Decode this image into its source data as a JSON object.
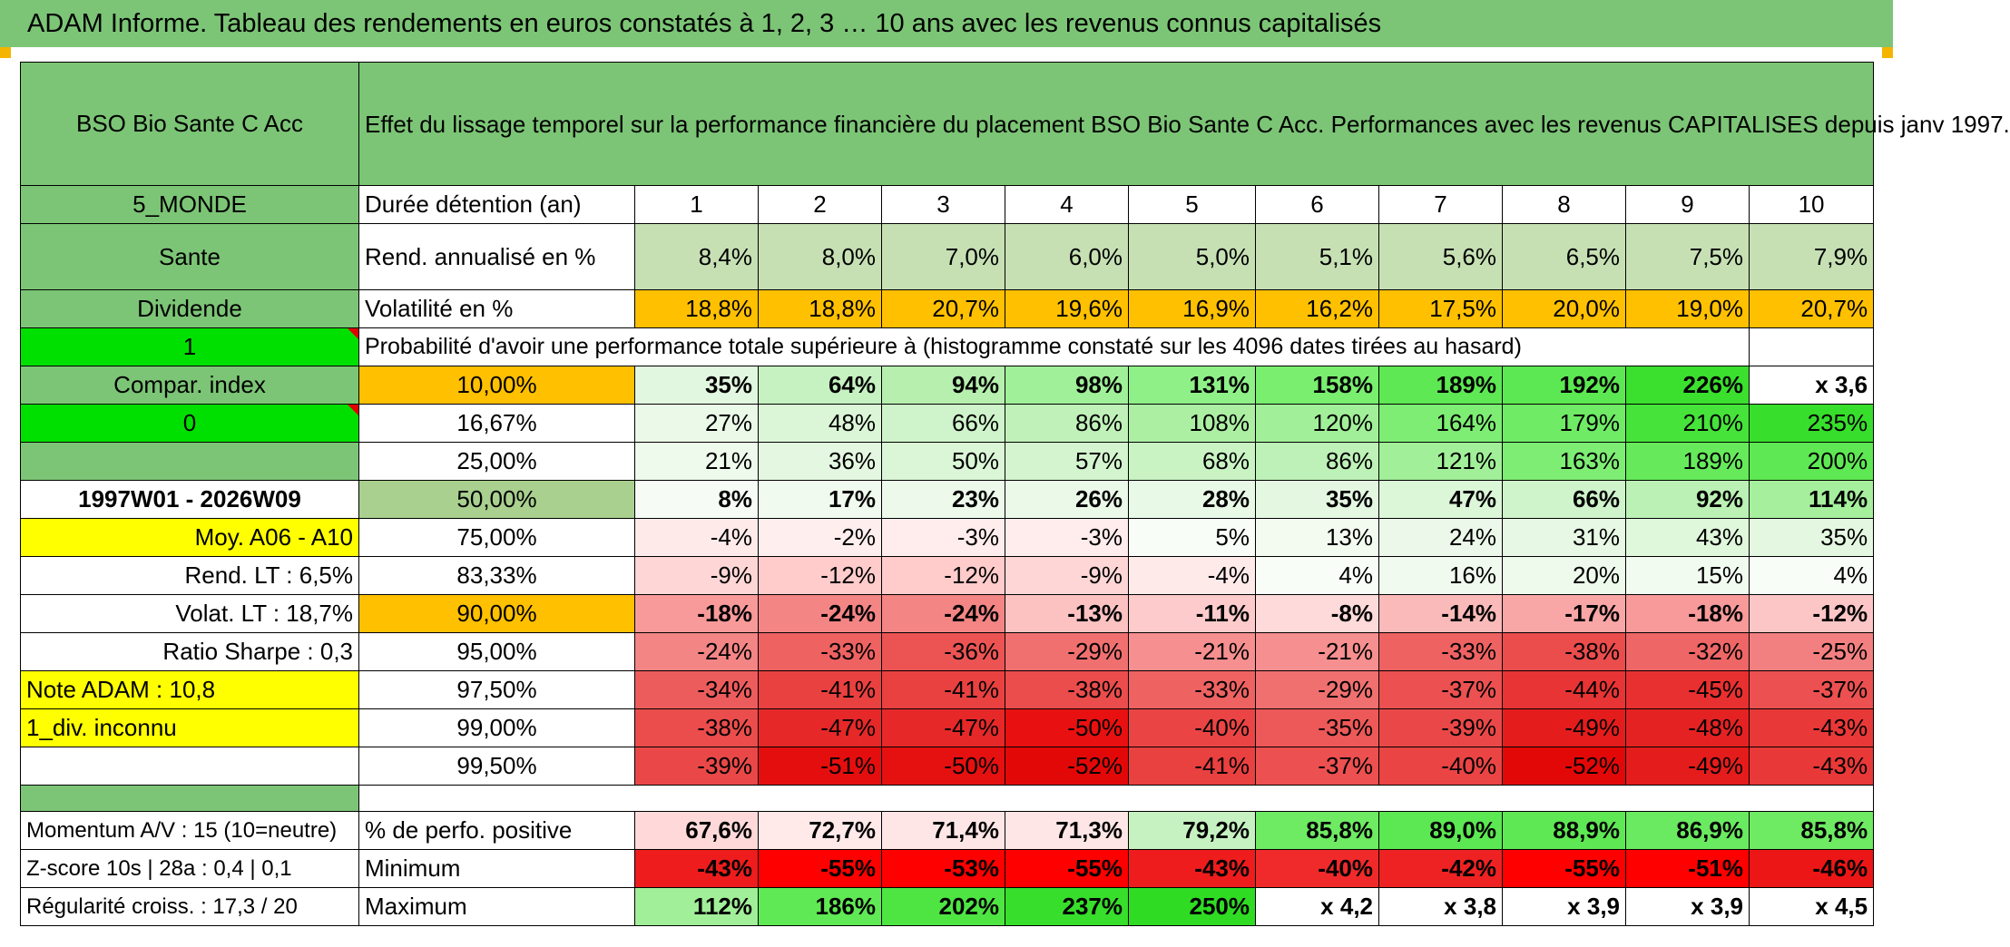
{
  "header": {
    "title": "ADAM Informe. Tableau des rendements en euros constatés à 1, 2, 3 … 10 ans avec les revenus connus capitalisés"
  },
  "fund": {
    "name": "BSO Bio Sante C Acc",
    "description": "Effet du lissage temporel sur la performance financière du placement BSO Bio Sante C Acc. Performances avec les revenus CAPITALISES depuis janv 1997."
  },
  "left": {
    "zone": "5_MONDE",
    "sector": "Sante",
    "dividend": "Dividende",
    "val1": "1",
    "compar": "Compar. index",
    "val0": "0",
    "blank": "",
    "period": "1997W01 - 2026W09",
    "moy": "Moy. A06 - A10",
    "rend_lt": "Rend. LT :   6,5%",
    "volat_lt": "Volat. LT :   18,7%",
    "sharpe": "Ratio Sharpe :   0,3",
    "note": "Note ADAM : 10,8",
    "div_inconnu": "1_div. inconnu",
    "momentum": "Momentum A/V : 15 (10=neutre)",
    "zscore": "Z-score 10s | 28a : 0,4 | 0,1",
    "regularite": "Régularité croiss. : 17,3 / 20"
  },
  "rows": {
    "duree_label": "Durée détention (an)",
    "years": [
      "1",
      "2",
      "3",
      "4",
      "5",
      "6",
      "7",
      "8",
      "9",
      "10"
    ],
    "rend_label": "Rend. annualisé en %",
    "rend": [
      "8,4%",
      "8,0%",
      "7,0%",
      "6,0%",
      "5,0%",
      "5,1%",
      "5,6%",
      "6,5%",
      "7,5%",
      "7,9%"
    ],
    "vol_label": "Volatilité en %",
    "vol": [
      "18,8%",
      "18,8%",
      "20,7%",
      "19,6%",
      "16,9%",
      "16,2%",
      "17,5%",
      "20,0%",
      "19,0%",
      "20,7%"
    ],
    "prob_label": "Probabilité d'avoir une performance totale supérieure à (histogramme constaté sur les 4096 dates tirées au hasard)"
  },
  "probabilities": [
    {
      "pct": "10,00%",
      "values": [
        "35%",
        "64%",
        "94%",
        "98%",
        "131%",
        "158%",
        "189%",
        "192%",
        "226%",
        "x 3,6"
      ],
      "colors": [
        "#e2f7df",
        "#c6f1c0",
        "#b6efae",
        "#9ff098",
        "#8ff087",
        "#79ee6f",
        "#5ee853",
        "#5ce852",
        "#3be02e",
        "#ffffff"
      ]
    },
    {
      "pct": "16,67%",
      "values": [
        "27%",
        "48%",
        "66%",
        "86%",
        "108%",
        "120%",
        "164%",
        "179%",
        "210%",
        "235%"
      ],
      "colors": [
        "#eaf9e8",
        "#dbf6d7",
        "#cff3ca",
        "#c0f1b9",
        "#acefa3",
        "#a2ef99",
        "#7ded73",
        "#6feb65",
        "#46e33a",
        "#37de2b"
      ]
    },
    {
      "pct": "25,00%",
      "values": [
        "21%",
        "36%",
        "50%",
        "57%",
        "68%",
        "86%",
        "121%",
        "163%",
        "189%",
        "200%"
      ],
      "colors": [
        "#eefaec",
        "#e4f8e1",
        "#daf6d6",
        "#d3f4ce",
        "#caf3c4",
        "#bef1b7",
        "#a1ef98",
        "#7eed74",
        "#66ea5b",
        "#5ee853"
      ]
    },
    {
      "pct": "50,00%",
      "values": [
        "8%",
        "17%",
        "23%",
        "26%",
        "28%",
        "35%",
        "47%",
        "66%",
        "92%",
        "114%"
      ],
      "colors": [
        "#f6fcf5",
        "#f0faee",
        "#edf9eb",
        "#ebf9e9",
        "#e9f9e7",
        "#e4f8e1",
        "#dcf6d8",
        "#cff3ca",
        "#bbf1b4",
        "#a6ef9d"
      ]
    },
    {
      "pct": "75,00%",
      "values": [
        "-4%",
        "-2%",
        "-3%",
        "-3%",
        "5%",
        "13%",
        "24%",
        "31%",
        "43%",
        "35%"
      ],
      "colors": [
        "#ffeaea",
        "#ffeeee",
        "#ffecec",
        "#ffecec",
        "#f8fdf7",
        "#f3fbf1",
        "#ecf9ea",
        "#e7f8e4",
        "#dff7db",
        "#e4f8e1"
      ]
    },
    {
      "pct": "83,33%",
      "values": [
        "-9%",
        "-12%",
        "-12%",
        "-9%",
        "-4%",
        "4%",
        "16%",
        "20%",
        "15%",
        "4%"
      ],
      "colors": [
        "#ffd6d6",
        "#ffcbcb",
        "#ffcbcb",
        "#ffd6d6",
        "#ffeaea",
        "#f8fdf7",
        "#f1faef",
        "#eefaec",
        "#f2fbf0",
        "#f8fdf7"
      ]
    },
    {
      "pct": "90,00%",
      "values": [
        "-18%",
        "-24%",
        "-24%",
        "-13%",
        "-11%",
        "-8%",
        "-14%",
        "-17%",
        "-18%",
        "-12%"
      ],
      "colors": [
        "#f89a9a",
        "#f48585",
        "#f48585",
        "#fcc2c2",
        "#fdcbcb",
        "#ffdada",
        "#fbbaba",
        "#f9a6a6",
        "#f89a9a",
        "#fdc6c6"
      ]
    },
    {
      "pct": "95,00%",
      "values": [
        "-24%",
        "-33%",
        "-36%",
        "-29%",
        "-21%",
        "-21%",
        "-33%",
        "-38%",
        "-32%",
        "-25%"
      ],
      "colors": [
        "#f48585",
        "#ee6262",
        "#ec5454",
        "#f07070",
        "#f68f8f",
        "#f68f8f",
        "#ee6262",
        "#eb4c4c",
        "#ee6666",
        "#f38080"
      ]
    },
    {
      "pct": "97,50%",
      "values": [
        "-34%",
        "-41%",
        "-41%",
        "-38%",
        "-33%",
        "-29%",
        "-37%",
        "-44%",
        "-45%",
        "-37%"
      ],
      "colors": [
        "#ed5c5c",
        "#e94040",
        "#e94040",
        "#eb4c4c",
        "#ee6262",
        "#f07070",
        "#ec5050",
        "#e83434",
        "#e83030",
        "#ec5050"
      ]
    },
    {
      "pct": "99,00%",
      "values": [
        "-38%",
        "-47%",
        "-47%",
        "-50%",
        "-40%",
        "-35%",
        "-39%",
        "-49%",
        "-48%",
        "-43%"
      ],
      "colors": [
        "#eb4c4c",
        "#e62828",
        "#e62828",
        "#e81010",
        "#ea4444",
        "#ed5858",
        "#ea4848",
        "#e51c1c",
        "#e52222",
        "#e93838"
      ]
    },
    {
      "pct": "99,50%",
      "values": [
        "-39%",
        "-51%",
        "-50%",
        "-52%",
        "-41%",
        "-37%",
        "-40%",
        "-52%",
        "-49%",
        "-43%"
      ],
      "colors": [
        "#ea4848",
        "#e50e0e",
        "#e51010",
        "#e30808",
        "#e94040",
        "#ec5050",
        "#ea4444",
        "#e30808",
        "#e51c1c",
        "#e93838"
      ]
    }
  ],
  "stats": {
    "positive_label": "% de perfo. positive",
    "positive": [
      "67,6%",
      "72,7%",
      "71,4%",
      "71,3%",
      "79,2%",
      "85,8%",
      "89,0%",
      "88,9%",
      "86,9%",
      "85,8%"
    ],
    "positive_colors": [
      "#ffd9d9",
      "#ffe9e9",
      "#ffe6e6",
      "#ffe6e6",
      "#c6f1c0",
      "#6eea63",
      "#5ce852",
      "#5ee853",
      "#6aea60",
      "#6eea63"
    ],
    "min_label": "Minimum",
    "min": [
      "-43%",
      "-55%",
      "-53%",
      "-55%",
      "-43%",
      "-40%",
      "-42%",
      "-55%",
      "-51%",
      "-46%"
    ],
    "min_colors": [
      "#ee1c1c",
      "#ff0000",
      "#ff0000",
      "#ff0000",
      "#ee1c1c",
      "#f02a2a",
      "#ee2222",
      "#ff0000",
      "#ff0000",
      "#ec1616"
    ],
    "max_label": "Maximum",
    "max": [
      "112%",
      "186%",
      "202%",
      "237%",
      "250%",
      "x 4,2",
      "x 3,8",
      "x 3,9",
      "x 3,9",
      "x 4,5"
    ],
    "max_colors": [
      "#a1ef98",
      "#5fe954",
      "#4ee543",
      "#37de2b",
      "#2fdc23",
      "#ffffff",
      "#ffffff",
      "#ffffff",
      "#ffffff",
      "#ffffff"
    ]
  },
  "colors": {
    "header_green": "#7cc576",
    "rend_green": "#c6e0b4",
    "vol_orange": "#ffc000",
    "bright_green": "#00e000",
    "yellow": "#ffff00",
    "median_green": "#a9d08e",
    "label_red": "#d01010"
  }
}
